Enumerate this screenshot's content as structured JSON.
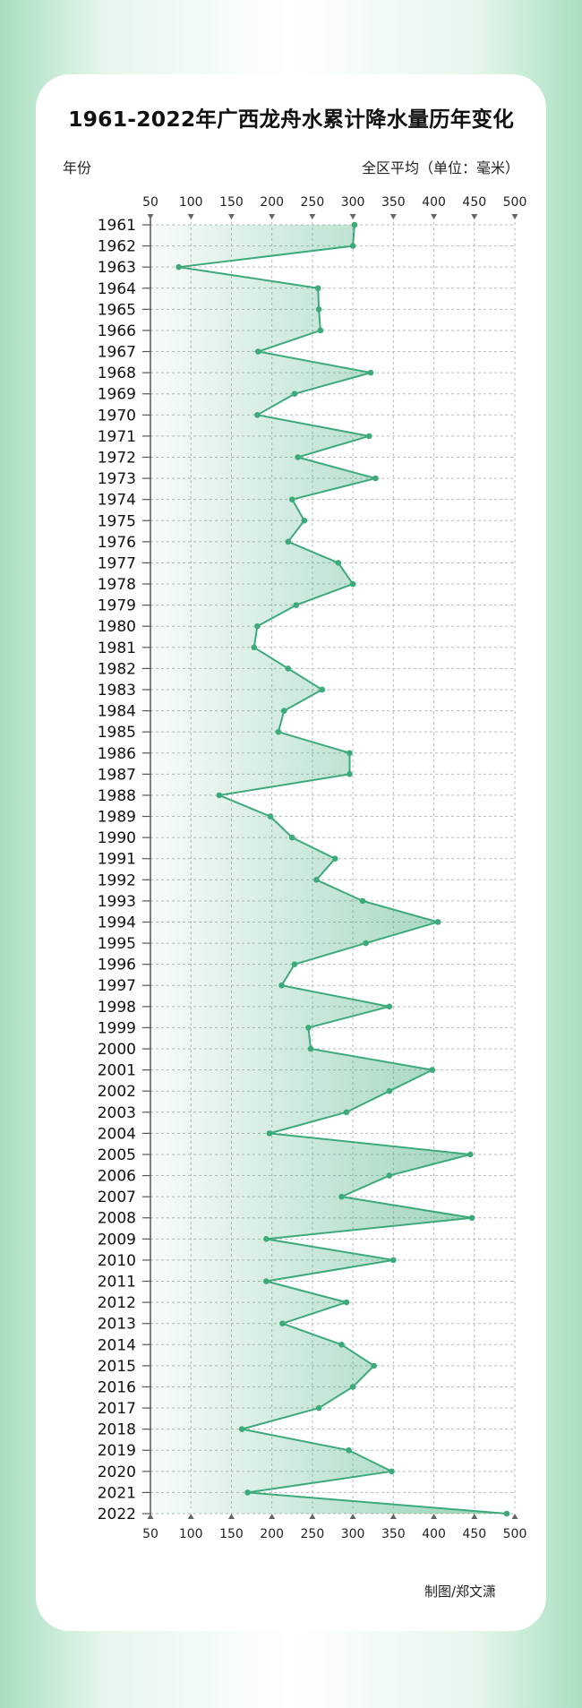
{
  "title": "1961-2022年广西龙舟水累计降水量历年变化",
  "y_axis_label": "年份",
  "unit_label": "全区平均（单位：毫米）",
  "credit": "制图/郑文潇",
  "colors": {
    "line": "#3daa7a",
    "fill": "#3daa7a",
    "axis": "#555555",
    "grid": "#bbbbbb"
  },
  "chart_data": {
    "type": "area",
    "orientation": "horizontal",
    "title": "1961-2022年广西龙舟水累计降水量历年变化",
    "xlabel": "全区平均（单位：毫米）",
    "ylabel": "年份",
    "xlim": [
      50,
      500
    ],
    "xticks": [
      50,
      100,
      150,
      200,
      250,
      300,
      350,
      400,
      450,
      500
    ],
    "grid": true,
    "categories": [
      "1961",
      "1962",
      "1963",
      "1964",
      "1965",
      "1966",
      "1967",
      "1968",
      "1969",
      "1970",
      "1971",
      "1972",
      "1973",
      "1974",
      "1975",
      "1976",
      "1977",
      "1978",
      "1979",
      "1980",
      "1981",
      "1982",
      "1983",
      "1984",
      "1985",
      "1986",
      "1987",
      "1988",
      "1989",
      "1990",
      "1991",
      "1992",
      "1993",
      "1994",
      "1995",
      "1996",
      "1997",
      "1998",
      "1999",
      "2000",
      "2001",
      "2002",
      "2003",
      "2004",
      "2005",
      "2006",
      "2007",
      "2008",
      "2009",
      "2010",
      "2011",
      "2012",
      "2013",
      "2014",
      "2015",
      "2016",
      "2017",
      "2018",
      "2019",
      "2020",
      "2021",
      "2022"
    ],
    "values": [
      302,
      300,
      85,
      257,
      258,
      260,
      183,
      322,
      228,
      182,
      320,
      232,
      328,
      225,
      240,
      220,
      282,
      300,
      230,
      182,
      178,
      220,
      262,
      215,
      208,
      296,
      296,
      135,
      198,
      225,
      278,
      255,
      312,
      405,
      316,
      228,
      212,
      345,
      245,
      248,
      398,
      345,
      292,
      197,
      445,
      345,
      286,
      447,
      193,
      350,
      193,
      292,
      213,
      286,
      326,
      300,
      258,
      163,
      295,
      348,
      170,
      490
    ]
  }
}
